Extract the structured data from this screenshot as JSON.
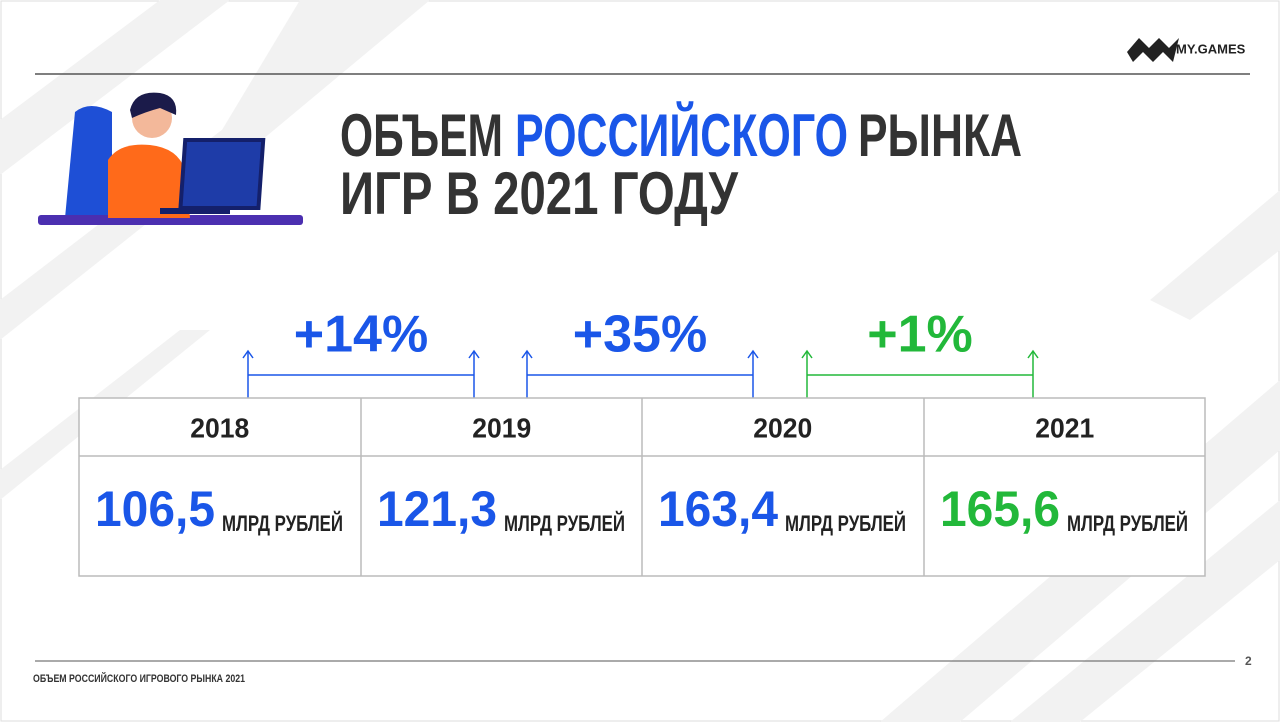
{
  "header": {
    "logo": "MY.GAMES"
  },
  "title": {
    "line1": [
      "ОБЪЕМ",
      "РОССИЙСКОГО",
      "РЫНКА"
    ],
    "line2": "ИГР В 2021 ГОДУ"
  },
  "growth": [
    "+14%",
    "+35%",
    "+1%"
  ],
  "table": {
    "columns": [
      {
        "year": "2018",
        "value": "106,5",
        "unit": "МЛРД РУБЛЕЙ"
      },
      {
        "year": "2019",
        "value": "121,3",
        "unit": "МЛРД РУБЛЕЙ"
      },
      {
        "year": "2020",
        "value": "163,4",
        "unit": "МЛРД РУБЛЕЙ"
      },
      {
        "year": "2021",
        "value": "165,6",
        "unit": "МЛРД РУБЛЕЙ"
      }
    ]
  },
  "footer": {
    "text": "ОБЪЕМ РОССИЙСКОГО ИГРОВОГО РЫНКА 2021",
    "page": "2"
  }
}
